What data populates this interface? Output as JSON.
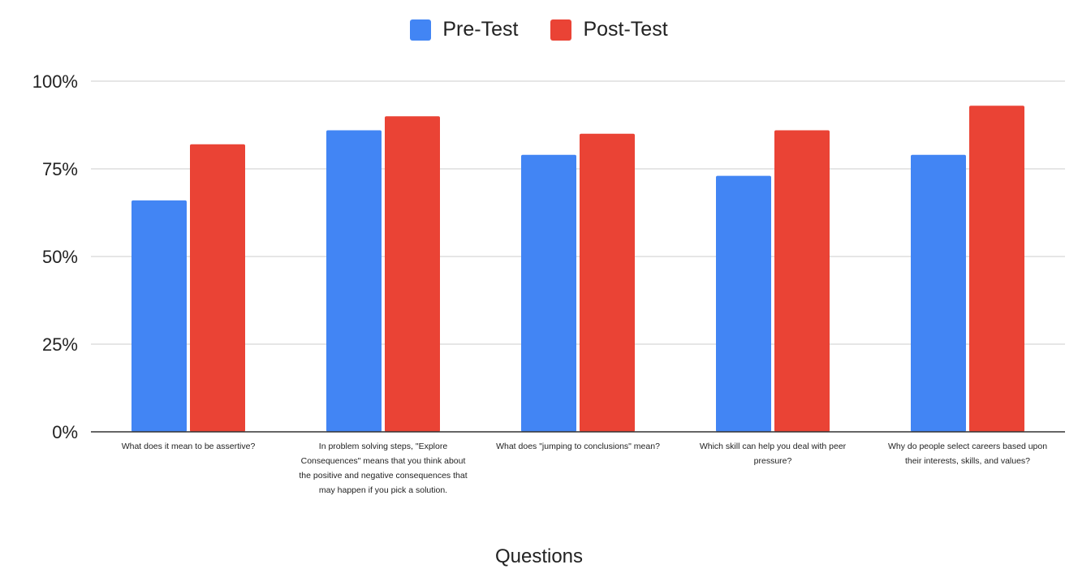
{
  "chart_data": {
    "type": "bar",
    "categories": [
      "What does it mean to be assertive?",
      "In problem solving steps, \"Explore Consequences\" means that you think about the positive and negative consequences that may happen if you pick a solution.",
      "What does \"jumping to conclusions\" mean?",
      "Which skill can help you deal with peer pressure?",
      "Why do people select careers based upon their interests, skills, and values?"
    ],
    "series": [
      {
        "name": "Pre-Test",
        "color": "#4285f4",
        "values": [
          66,
          86,
          79,
          73,
          79
        ]
      },
      {
        "name": "Post-Test",
        "color": "#ea4335",
        "values": [
          82,
          90,
          85,
          86,
          93
        ]
      }
    ],
    "title": "",
    "xlabel": "Questions",
    "ylabel": "",
    "ylim": [
      0,
      100
    ],
    "yticks": [
      "0%",
      "25%",
      "50%",
      "75%",
      "100%"
    ],
    "grid": true,
    "legend_position": "top"
  }
}
